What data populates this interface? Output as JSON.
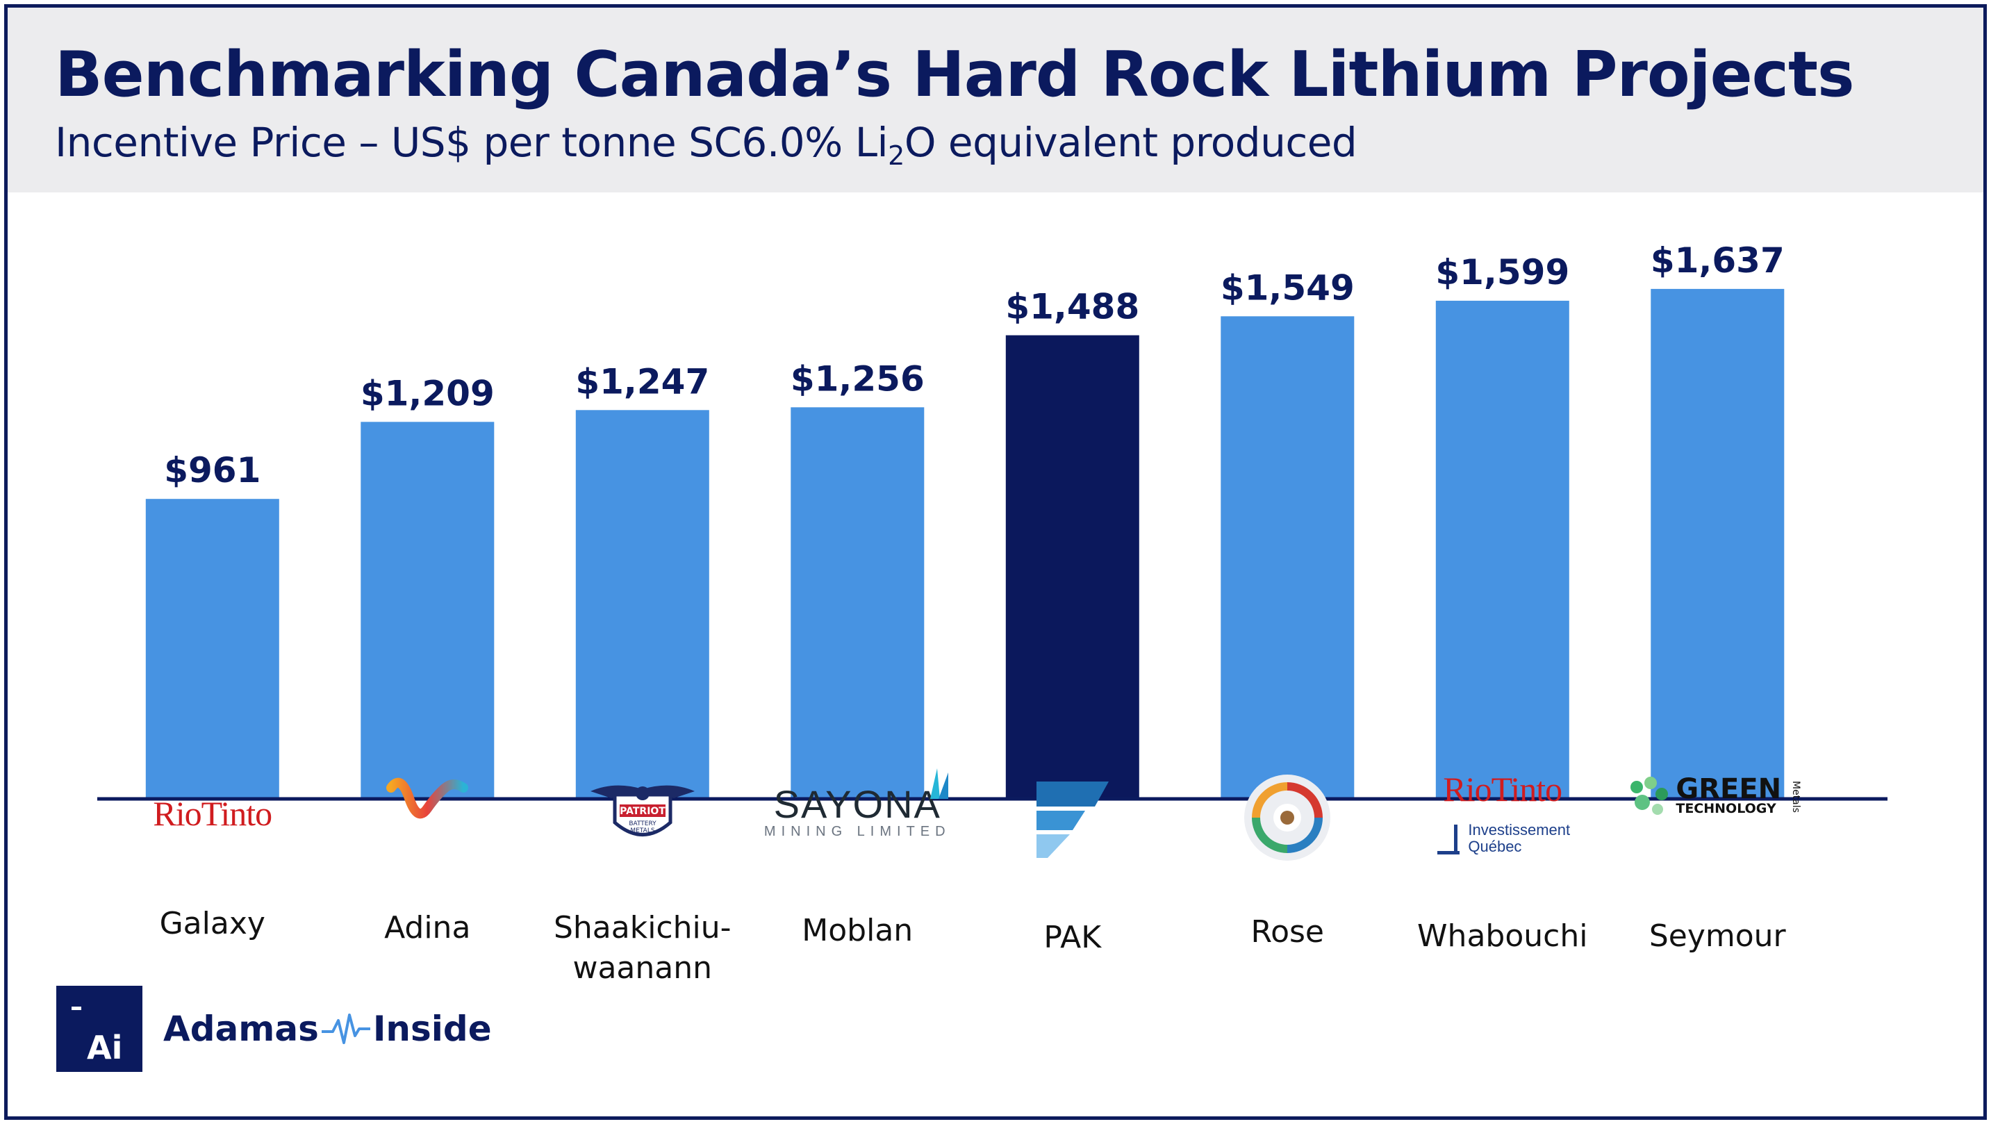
{
  "header": {
    "title": "Benchmarking Canada’s Hard Rock Lithium Projects",
    "subtitle_pre": "Incentive Price – US$ per tonne SC6.0% Li",
    "subtitle_sub": "2",
    "subtitle_post": "O equivalent produced"
  },
  "chart_data": {
    "type": "bar",
    "title": "Benchmarking Canada’s Hard Rock Lithium Projects",
    "subtitle": "Incentive Price – US$ per tonne SC6.0% Li2O equivalent produced",
    "xlabel": "",
    "ylabel": "",
    "categories": [
      "Galaxy",
      "Adina",
      "Shaakichiu-waanann",
      "Moblan",
      "PAK",
      "Rose",
      "Whabouchi",
      "Seymour"
    ],
    "values": [
      961,
      1209,
      1247,
      1256,
      1488,
      1549,
      1599,
      1637
    ],
    "value_labels": [
      "$961",
      "$1,209",
      "$1,247",
      "$1,256",
      "$1,488",
      "$1,549",
      "$1,599",
      "$1,637"
    ],
    "ylim": [
      0,
      1900
    ],
    "grid": false,
    "legend": "none",
    "highlight_index": 4,
    "colors": {
      "bar": "#4793e2",
      "highlight": "#0b185c",
      "axis": "#0b1a5e"
    }
  },
  "projects": [
    {
      "label_lines": [
        "Galaxy"
      ],
      "logo": "rio-tinto-logo",
      "logo_text": "RioTinto"
    },
    {
      "label_lines": [
        "Adina"
      ],
      "logo": "winsome-wave-logo"
    },
    {
      "label_lines": [
        "Shaakichiu-",
        "waanann"
      ],
      "logo": "patriot-battery-metals-logo",
      "logo_text": [
        "PATRIOT",
        "BATTERY",
        "METALS"
      ]
    },
    {
      "label_lines": [
        "Moblan"
      ],
      "logo": "sayona-logo",
      "logo_text": [
        "SAYONA",
        "MINING LIMITED"
      ]
    },
    {
      "label_lines": [
        "PAK"
      ],
      "logo": "frontier-flag-logo"
    },
    {
      "label_lines": [
        "Rose"
      ],
      "logo": "critical-elements-globe-logo"
    },
    {
      "label_lines": [
        "Whabouchi"
      ],
      "logo": "rio-tinto-iq-logo",
      "logo_text": [
        "RioTinto",
        "Investissement",
        "Québec"
      ]
    },
    {
      "label_lines": [
        "Seymour"
      ],
      "logo": "green-technology-metals-logo",
      "logo_text": [
        "GREEN",
        "TECHNOLOGY",
        "Metals"
      ]
    }
  ],
  "brand": {
    "box_text": "Ai",
    "name_left": "Adamas",
    "name_right": "Inside",
    "icon": "pulse-wave-icon"
  }
}
